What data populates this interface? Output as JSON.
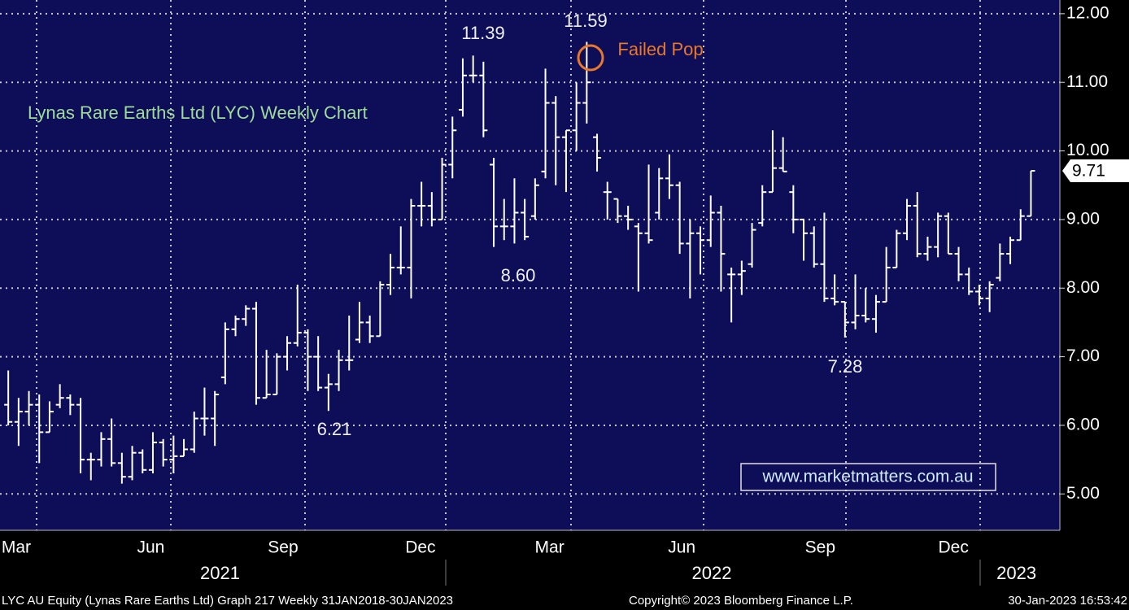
{
  "chart_data": {
    "type": "ohlc",
    "title": "Lynas Rare Earths Ltd (LYC) Weekly Chart",
    "annotations": [
      "11.39",
      "11.59",
      "8.60",
      "6.21",
      "7.28",
      "Failed Pop"
    ],
    "watermark": "www.marketmatters.com.au",
    "last_price_label": "9.71",
    "footer": [
      "LYC AU Equity (Lynas Rare Earths Ltd) Graph 217  Weekly 31JAN2018-30JAN2023",
      "Copyright© 2023 Bloomberg Finance L.P.",
      "30-Jan-2023 16:53:42"
    ],
    "color": "#ffffff",
    "grid": true,
    "xlim": [
      -0.8,
      101.8
    ],
    "xticks": [
      {
        "value": 0.77,
        "label": "Mar"
      },
      {
        "value": 13.8,
        "label": "Jun"
      },
      {
        "value": 26.6,
        "label": "Sep"
      },
      {
        "value": 39.9,
        "label": "Dec"
      },
      {
        "value": 52.4,
        "label": "Mar"
      },
      {
        "value": 65.2,
        "label": "Jun"
      },
      {
        "value": 78.6,
        "label": "Sep"
      },
      {
        "value": 91.5,
        "label": "Dec"
      }
    ],
    "year_ticks": [
      {
        "value": 20.5,
        "label": "2021"
      },
      {
        "value": 68.1,
        "label": "2022"
      },
      {
        "value": 97.6,
        "label": "2023"
      }
    ],
    "ylim": [
      4.47,
      12.2
    ],
    "yticks": [
      {
        "value": 5,
        "label": "5.00"
      },
      {
        "value": 6,
        "label": "6.00"
      },
      {
        "value": 7,
        "label": "7.00"
      },
      {
        "value": 8,
        "label": "8.00"
      },
      {
        "value": 9,
        "label": "9.00"
      },
      {
        "value": 10,
        "label": "10.00"
      },
      {
        "value": 11,
        "label": "11.00"
      },
      {
        "value": 12,
        "label": "12.00"
      }
    ],
    "ohlc": {
      "open": [
        6.3,
        6.05,
        6.2,
        6.3,
        5.9,
        6.3,
        6.4,
        6.3,
        5.5,
        5.5,
        5.8,
        5.45,
        5.25,
        5.6,
        5.35,
        5.75,
        5.5,
        5.55,
        5.65,
        6.1,
        6.1,
        6.7,
        7.4,
        7.55,
        7.7,
        6.4,
        6.45,
        7.0,
        7.2,
        7.35,
        7.0,
        6.55,
        6.6,
        6.95,
        7.25,
        7.5,
        7.3,
        8.05,
        8.3,
        8.3,
        9.2,
        9.2,
        9.0,
        9.8,
        10.6,
        11.1,
        11.1,
        9.8,
        8.9,
        8.9,
        9.1,
        9.05,
        9.7,
        10.7,
        10.2,
        10.3,
        10.7,
        10.2,
        9.4,
        9.3,
        9.05,
        8.9,
        8.8,
        9.1,
        9.6,
        9.5,
        8.65,
        8.8,
        8.7,
        9.1,
        8.2,
        8.2,
        8.35,
        8.95,
        9.4,
        9.75,
        9.4,
        9.0,
        8.8,
        8.35,
        7.85,
        7.8,
        7.5,
        7.6,
        7.55,
        7.8,
        8.3,
        8.8,
        9.2,
        8.5,
        8.6,
        9.05,
        8.5,
        8.2,
        7.95,
        7.85,
        8.15,
        8.5,
        8.7,
        9.05
      ],
      "high": [
        6.8,
        6.4,
        6.5,
        6.45,
        6.35,
        6.6,
        6.45,
        6.4,
        5.6,
        5.9,
        6.1,
        5.6,
        5.7,
        5.65,
        5.9,
        5.8,
        5.85,
        5.8,
        6.2,
        6.55,
        6.5,
        7.5,
        7.6,
        7.75,
        7.8,
        7.1,
        7.05,
        7.3,
        8.05,
        7.4,
        7.3,
        6.75,
        7.1,
        7.6,
        7.8,
        7.6,
        8.1,
        8.5,
        8.9,
        9.3,
        9.55,
        9.4,
        9.9,
        10.5,
        11.35,
        11.39,
        11.3,
        9.9,
        9.3,
        9.6,
        9.3,
        9.6,
        11.2,
        10.8,
        10.3,
        11.0,
        11.59,
        10.25,
        9.55,
        9.3,
        9.2,
        8.95,
        9.8,
        9.75,
        9.95,
        9.55,
        9.0,
        8.9,
        9.35,
        9.2,
        8.3,
        8.4,
        8.95,
        9.5,
        10.3,
        10.2,
        9.5,
        9.0,
        8.9,
        9.1,
        8.2,
        7.8,
        8.2,
        8.0,
        7.9,
        8.6,
        8.85,
        9.3,
        9.4,
        8.75,
        9.1,
        9.1,
        8.6,
        8.3,
        8.05,
        8.1,
        8.65,
        8.75,
        9.15,
        9.71
      ],
      "low": [
        6.0,
        5.7,
        6.0,
        5.45,
        5.9,
        6.25,
        6.15,
        5.3,
        5.2,
        5.4,
        5.4,
        5.15,
        5.2,
        5.3,
        5.3,
        5.4,
        5.3,
        5.55,
        5.6,
        5.85,
        5.7,
        6.6,
        7.3,
        7.45,
        6.3,
        6.4,
        6.45,
        6.8,
        7.15,
        6.5,
        6.5,
        6.21,
        6.5,
        6.8,
        7.2,
        7.2,
        7.3,
        7.9,
        8.2,
        7.85,
        8.9,
        8.9,
        9.0,
        9.6,
        10.5,
        11.0,
        10.2,
        8.6,
        8.7,
        8.65,
        8.7,
        9.0,
        9.6,
        9.5,
        9.4,
        10.0,
        10.4,
        9.7,
        9.0,
        8.95,
        8.85,
        7.95,
        8.65,
        9.0,
        9.3,
        8.5,
        7.85,
        8.2,
        8.6,
        7.95,
        7.5,
        7.9,
        8.3,
        8.9,
        9.4,
        9.7,
        8.8,
        8.4,
        8.3,
        7.8,
        7.75,
        7.28,
        7.4,
        7.5,
        7.35,
        7.8,
        8.3,
        8.7,
        8.45,
        8.4,
        8.45,
        8.5,
        8.1,
        7.9,
        7.75,
        7.65,
        8.1,
        8.35,
        8.7,
        9.05
      ],
      "close": [
        6.05,
        6.2,
        6.3,
        5.9,
        6.2,
        6.4,
        6.3,
        5.5,
        5.5,
        5.8,
        5.45,
        5.25,
        5.6,
        5.35,
        5.75,
        5.5,
        5.55,
        5.65,
        6.1,
        6.1,
        6.45,
        7.4,
        7.55,
        7.7,
        6.4,
        6.45,
        7.0,
        7.2,
        7.35,
        7.0,
        6.55,
        6.6,
        6.95,
        6.95,
        7.5,
        7.3,
        8.05,
        8.3,
        8.3,
        9.2,
        9.2,
        9.0,
        9.8,
        10.3,
        11.1,
        11.1,
        10.3,
        8.9,
        8.9,
        9.1,
        8.75,
        9.5,
        10.7,
        10.2,
        10.3,
        10.7,
        11.0,
        9.9,
        9.4,
        9.05,
        9.0,
        8.8,
        8.7,
        9.6,
        9.5,
        8.65,
        8.8,
        8.7,
        9.1,
        8.5,
        8.2,
        8.25,
        8.85,
        9.4,
        9.75,
        9.7,
        9.0,
        8.8,
        8.35,
        7.85,
        7.8,
        7.5,
        7.6,
        7.55,
        7.8,
        8.3,
        8.8,
        9.2,
        8.5,
        8.6,
        9.05,
        8.5,
        8.2,
        7.95,
        7.85,
        8.05,
        8.5,
        8.7,
        9.05,
        9.71
      ]
    }
  }
}
